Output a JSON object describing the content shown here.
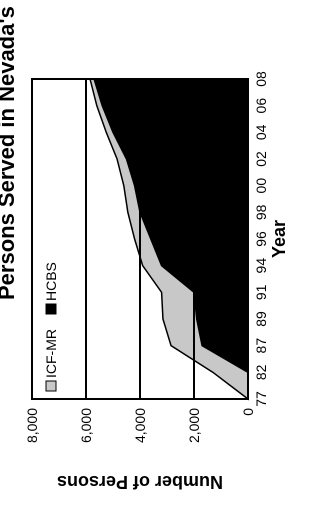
{
  "chart_data": {
    "type": "area",
    "stacked": true,
    "title": "Persons Served in Nevada's ICF-MR and HCBS Programs",
    "xlabel": "Year",
    "ylabel": "Number of Persons",
    "categories": [
      "77",
      "82",
      "87",
      "89",
      "91",
      "94",
      "96",
      "98",
      "00",
      "02",
      "04",
      "06",
      "08"
    ],
    "x_tick_labels": [
      "77",
      "82",
      "87",
      "89",
      "91",
      "94",
      "96",
      "98",
      "00",
      "02",
      "04",
      "06",
      "08"
    ],
    "y_tick_labels": [
      "0",
      "2,000",
      "4,000",
      "6,000",
      "8,000"
    ],
    "ylim": [
      0,
      8000
    ],
    "grid": "horizontal at 2,000, 4,000 and 6,000",
    "legend_position": "top-left",
    "series": [
      {
        "name": "HCBS",
        "color": "#000000",
        "values": [
          0,
          0,
          1700,
          1900,
          2000,
          3200,
          3600,
          4000,
          4200,
          4500,
          5000,
          5400,
          5700
        ]
      },
      {
        "name": "ICF-MR",
        "color": "#c8c8c8",
        "values": [
          0,
          1300,
          1150,
          1250,
          1200,
          700,
          600,
          450,
          400,
          350,
          250,
          200,
          150
        ]
      }
    ]
  }
}
